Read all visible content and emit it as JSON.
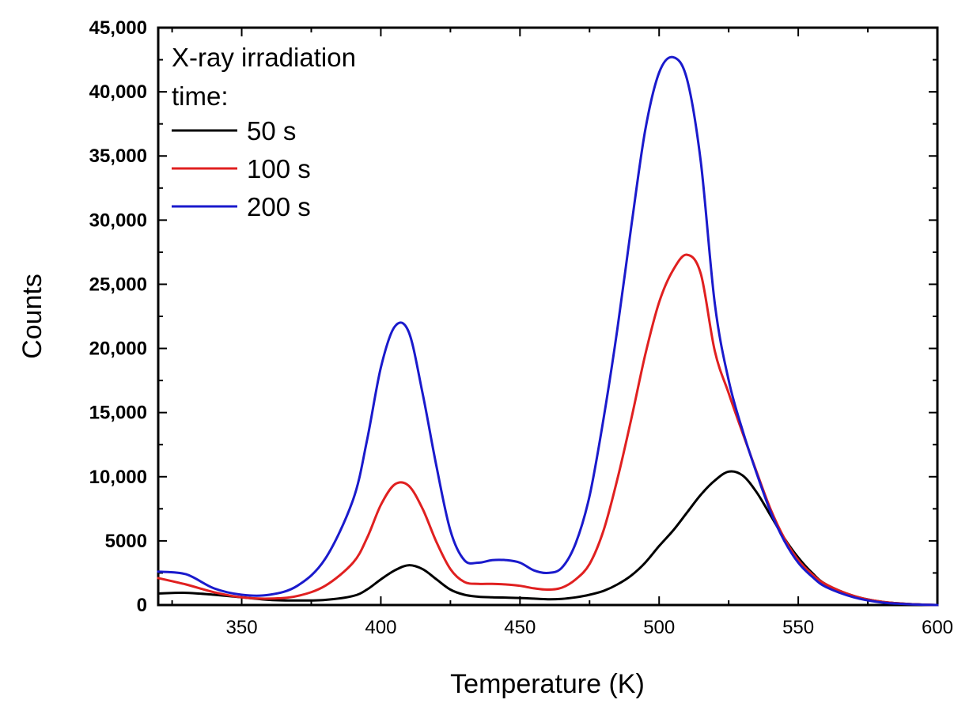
{
  "chart_data": {
    "type": "line",
    "title": "",
    "xlabel": "Temperature (K)",
    "ylabel": "Counts",
    "xlim": [
      320,
      600
    ],
    "ylim": [
      0,
      45000
    ],
    "x_ticks": [
      350,
      400,
      450,
      500,
      550,
      600
    ],
    "x_tick_labels": [
      "350",
      "400",
      "450",
      "500",
      "550",
      "600"
    ],
    "y_ticks": [
      0,
      5000,
      10000,
      15000,
      20000,
      25000,
      30000,
      35000,
      40000,
      45000
    ],
    "y_tick_labels": [
      "0",
      "5000",
      "10,000",
      "15,000",
      "20,000",
      "25,000",
      "30,000",
      "35,000",
      "40,000",
      "45,000"
    ],
    "grid": false,
    "legend_title": [
      "X-ray irradiation",
      "time:"
    ],
    "legend_position": "top-left",
    "x": [
      320,
      330,
      340,
      350,
      360,
      370,
      380,
      390,
      395,
      400,
      405,
      410,
      415,
      420,
      425,
      430,
      435,
      440,
      445,
      450,
      455,
      460,
      465,
      470,
      475,
      480,
      485,
      490,
      495,
      500,
      505,
      510,
      515,
      520,
      525,
      530,
      535,
      540,
      545,
      550,
      555,
      560,
      570,
      580,
      590,
      600
    ],
    "series": [
      {
        "name": "50 s",
        "color": "#000000",
        "values": [
          900,
          950,
          800,
          600,
          400,
          350,
          400,
          700,
          1200,
          2000,
          2700,
          3100,
          2800,
          2000,
          1200,
          800,
          650,
          600,
          580,
          550,
          500,
          450,
          480,
          600,
          800,
          1100,
          1600,
          2300,
          3300,
          4600,
          5800,
          7200,
          8600,
          9700,
          10400,
          10100,
          8800,
          7000,
          5200,
          3700,
          2500,
          1600,
          700,
          250,
          80,
          0
        ]
      },
      {
        "name": "100 s",
        "color": "#e02020",
        "values": [
          2100,
          1600,
          1000,
          600,
          500,
          700,
          1500,
          3300,
          5200,
          7800,
          9400,
          9300,
          7500,
          4900,
          2800,
          1800,
          1650,
          1650,
          1600,
          1500,
          1300,
          1200,
          1350,
          2000,
          3200,
          5800,
          9800,
          14500,
          19500,
          23600,
          26100,
          27300,
          25800,
          19800,
          16500,
          13400,
          10400,
          7500,
          5200,
          3500,
          2400,
          1600,
          700,
          250,
          80,
          0
        ]
      },
      {
        "name": "200 s",
        "color": "#1a1acc",
        "values": [
          2600,
          2400,
          1300,
          800,
          800,
          1500,
          3600,
          8200,
          12800,
          18500,
          21700,
          21300,
          16500,
          10800,
          5800,
          3500,
          3300,
          3500,
          3500,
          3300,
          2700,
          2500,
          2900,
          4800,
          8500,
          14500,
          21500,
          29500,
          37000,
          41500,
          42700,
          41000,
          34500,
          23500,
          17500,
          13600,
          10300,
          7300,
          5000,
          3300,
          2200,
          1400,
          600,
          200,
          60,
          0
        ]
      }
    ]
  }
}
